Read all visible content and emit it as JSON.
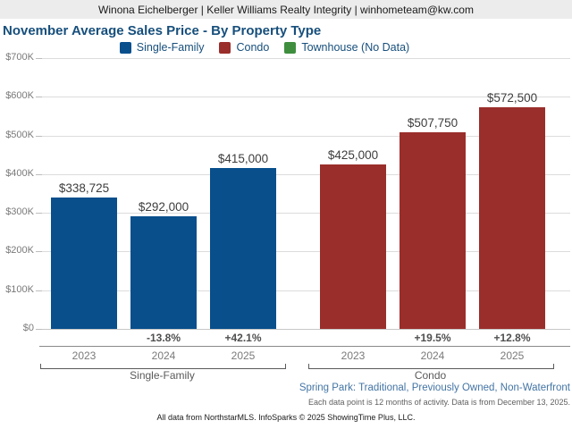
{
  "header": {
    "text": "Winona Eichelberger | Keller Williams Realty Integrity | winhometeam@kw.com"
  },
  "title": "November Average Sales Price - By Property Type",
  "legend": [
    {
      "label": "Single-Family",
      "color": "#084f8c"
    },
    {
      "label": "Condo",
      "color": "#9a2e2b"
    },
    {
      "label": "Townhouse (No Data)",
      "color": "#3e8e3e"
    }
  ],
  "chart_data": {
    "type": "bar",
    "title": "November Average Sales Price - By Property Type",
    "ylabel": "",
    "xlabel": "",
    "ylim": [
      0,
      700000
    ],
    "grid": true,
    "legend_position": "top",
    "y_ticks": [
      {
        "label": "$700K",
        "value": 700000
      },
      {
        "label": "$600K",
        "value": 600000
      },
      {
        "label": "$500K",
        "value": 500000
      },
      {
        "label": "$400K",
        "value": 400000
      },
      {
        "label": "$300K",
        "value": 300000
      },
      {
        "label": "$200K",
        "value": 200000
      },
      {
        "label": "$100K",
        "value": 100000
      },
      {
        "label": "$0",
        "value": 0
      }
    ],
    "categories": [
      "2023",
      "2024",
      "2025"
    ],
    "groups": [
      {
        "name": "Single-Family",
        "color": "#084f8c",
        "bars": [
          {
            "year": "2023",
            "value": 338725,
            "label": "$338,725",
            "pct_change": ""
          },
          {
            "year": "2024",
            "value": 292000,
            "label": "$292,000",
            "pct_change": "-13.8%"
          },
          {
            "year": "2025",
            "value": 415000,
            "label": "$415,000",
            "pct_change": "+42.1%"
          }
        ]
      },
      {
        "name": "Condo",
        "color": "#9a2e2b",
        "bars": [
          {
            "year": "2023",
            "value": 425000,
            "label": "$425,000",
            "pct_change": ""
          },
          {
            "year": "2024",
            "value": 507750,
            "label": "$507,750",
            "pct_change": "+19.5%"
          },
          {
            "year": "2025",
            "value": 572500,
            "label": "$572,500",
            "pct_change": "+12.8%"
          }
        ]
      }
    ],
    "townhouse_series": {
      "name": "Townhouse",
      "status": "No Data"
    }
  },
  "footer": {
    "filter_line": "Spring Park: Traditional, Previously Owned, Non-Waterfront",
    "data_note": "Each data point is 12 months of activity. Data is from December 13, 2025.",
    "attribution": "All data from NorthstarMLS. InfoSparks © 2025 ShowingTime Plus, LLC."
  }
}
